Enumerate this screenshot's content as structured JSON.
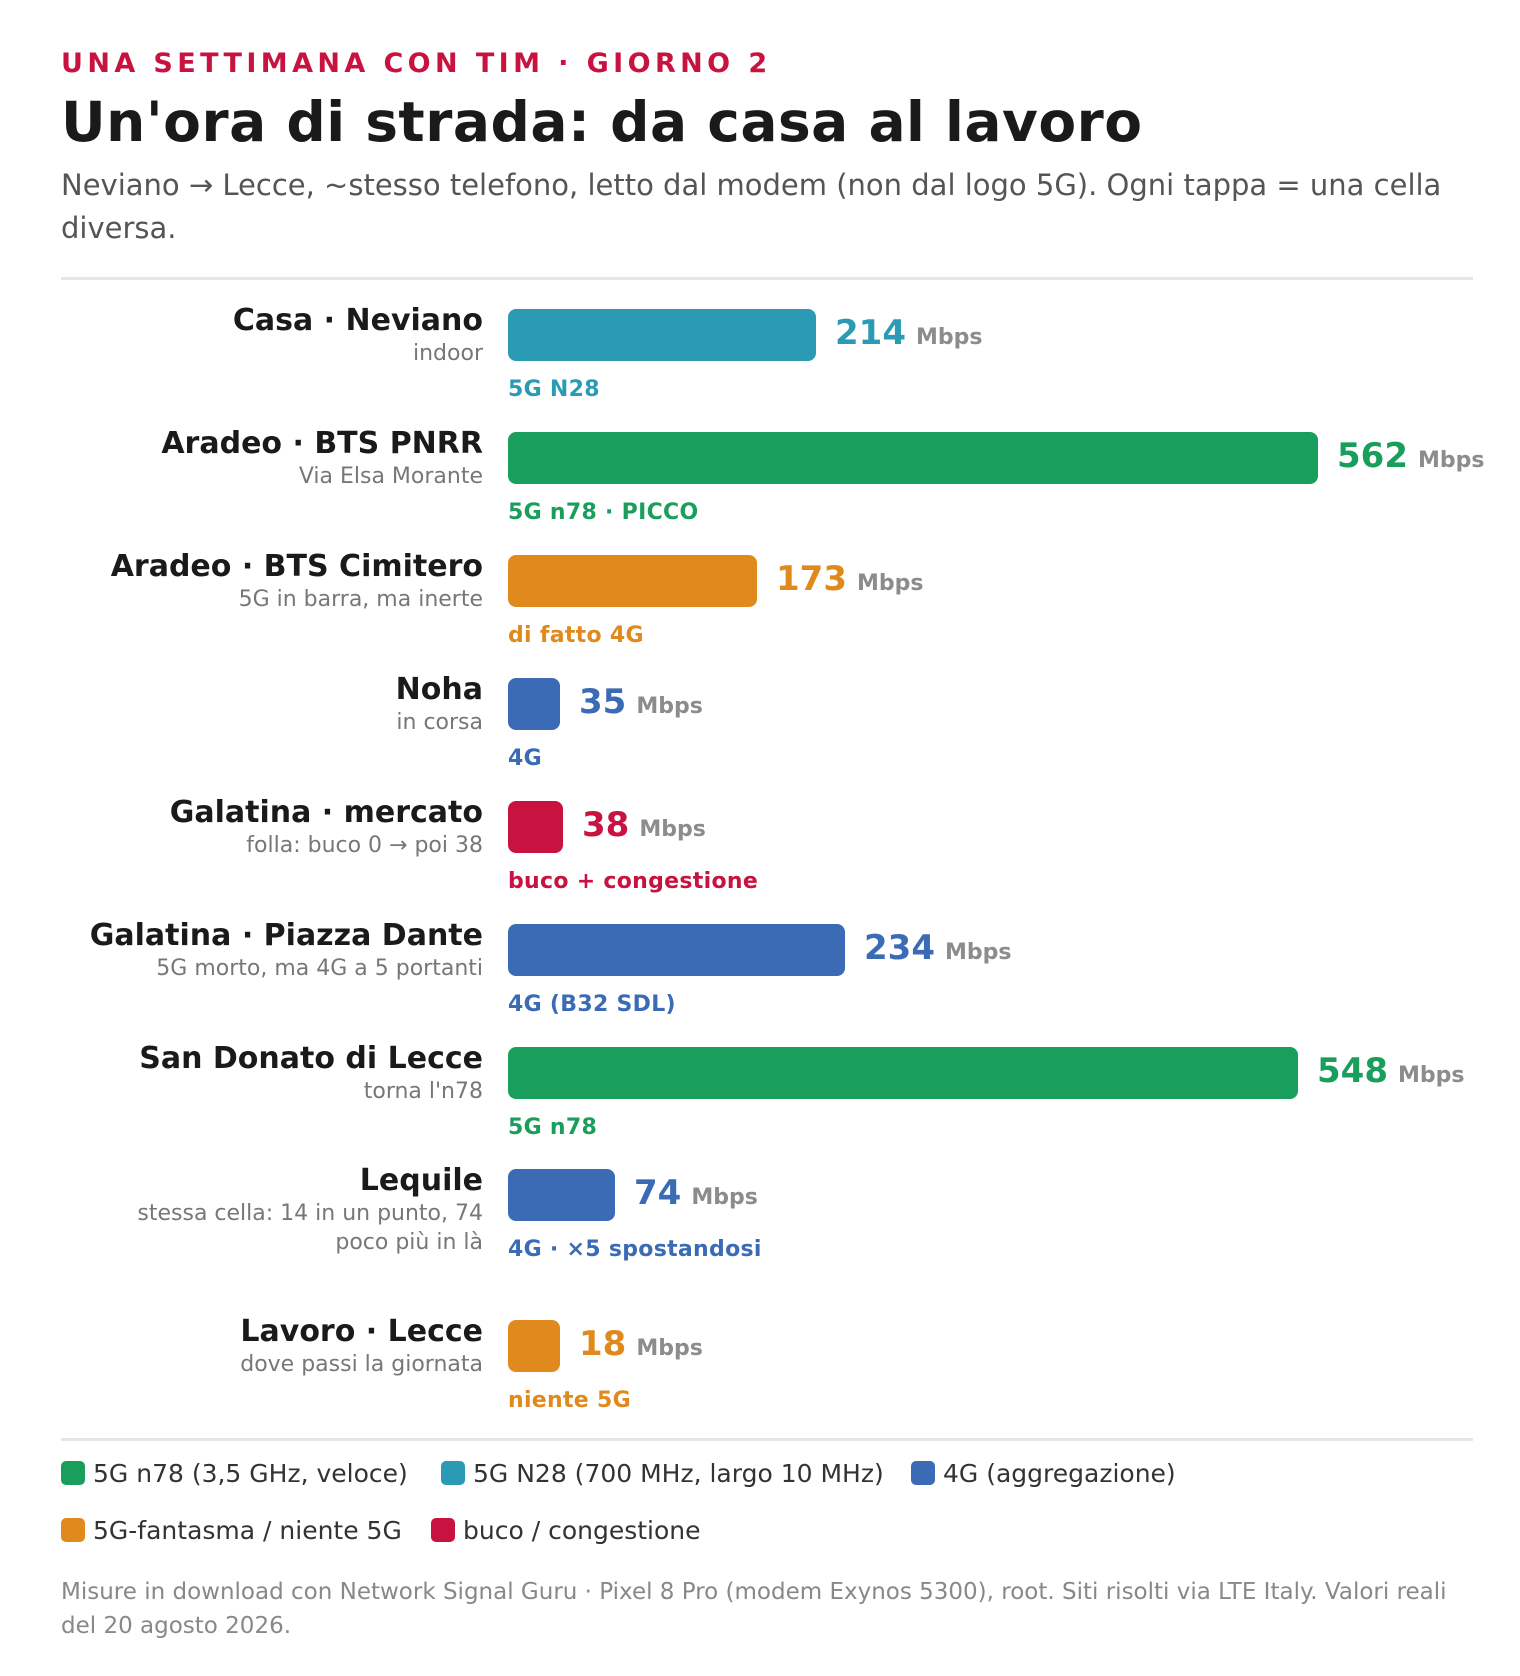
{
  "header": {
    "kicker": "UNA SETTIMANA CON TIM · GIORNO 2",
    "title": "Un'ora di strada: da casa al lavoro",
    "subtitle": "Neviano → Lecce, ~stesso telefono, letto dal modem (non dal logo 5G). Ogni tappa = una cella diversa."
  },
  "colors": {
    "n78": "#1a9e5c",
    "n28": "#2b9bb5",
    "lte": "#3b6bb5",
    "ghost": "#e08a1e",
    "hole": "#c8123f"
  },
  "chart_data": {
    "type": "bar",
    "orientation": "horizontal",
    "unit": "Mbps",
    "xlim": [
      0,
      562
    ],
    "categories": [
      "Casa · Neviano",
      "Aradeo · BTS PNRR",
      "Aradeo · BTS Cimitero",
      "Noha",
      "Galatina · mercato",
      "Galatina · Piazza Dante",
      "San Donato di Lecce",
      "Lequile",
      "Lavoro · Lecce"
    ],
    "values": [
      214,
      562,
      173,
      35,
      38,
      234,
      548,
      74,
      18
    ],
    "stops": [
      {
        "place": "Casa · Neviano",
        "note": "indoor",
        "value": 214,
        "unit": "Mbps",
        "tech": "5G N28",
        "color_key": "n28"
      },
      {
        "place": "Aradeo · BTS PNRR",
        "note": "Via Elsa Morante",
        "value": 562,
        "unit": "Mbps",
        "tech": "5G n78 · PICCO",
        "color_key": "n78"
      },
      {
        "place": "Aradeo · BTS Cimitero",
        "note": "5G in barra, ma inerte",
        "value": 173,
        "unit": "Mbps",
        "tech": "di fatto 4G",
        "color_key": "ghost"
      },
      {
        "place": "Noha",
        "note": "in corsa",
        "value": 35,
        "unit": "Mbps",
        "tech": "4G",
        "color_key": "lte"
      },
      {
        "place": "Galatina · mercato",
        "note": "folla: buco 0 → poi 38",
        "value": 38,
        "unit": "Mbps",
        "tech": "buco + congestione",
        "color_key": "hole"
      },
      {
        "place": "Galatina · Piazza Dante",
        "note": "5G morto, ma 4G a 5 portanti",
        "value": 234,
        "unit": "Mbps",
        "tech": "4G (B32 SDL)",
        "color_key": "lte"
      },
      {
        "place": "San Donato di Lecce",
        "note": "torna l'n78",
        "value": 548,
        "unit": "Mbps",
        "tech": "5G n78",
        "color_key": "n78"
      },
      {
        "place": "Lequile",
        "note": "stessa cella: 14 in un punto, 74 poco più in là",
        "value": 74,
        "unit": "Mbps",
        "tech": "4G · ×5 spostandosi",
        "color_key": "lte"
      },
      {
        "place": "Lavoro · Lecce",
        "note": "dove passi la giornata",
        "value": 18,
        "unit": "Mbps",
        "tech": "niente 5G",
        "color_key": "ghost"
      }
    ],
    "legend": [
      {
        "label": "5G n78 (3,5 GHz, veloce)",
        "color_key": "n78"
      },
      {
        "label": "5G N28 (700 MHz, largo 10 MHz)",
        "color_key": "n28"
      },
      {
        "label": "4G (aggregazione)",
        "color_key": "lte"
      },
      {
        "label": "5G-fantasma / niente 5G",
        "color_key": "ghost"
      },
      {
        "label": "buco / congestione",
        "color_key": "hole"
      }
    ]
  },
  "footnote": "Misure in download con Network Signal Guru · Pixel 8 Pro (modem Exynos 5300), root. Siti risolti via LTE Italy. Valori reali del 20 agosto 2026."
}
